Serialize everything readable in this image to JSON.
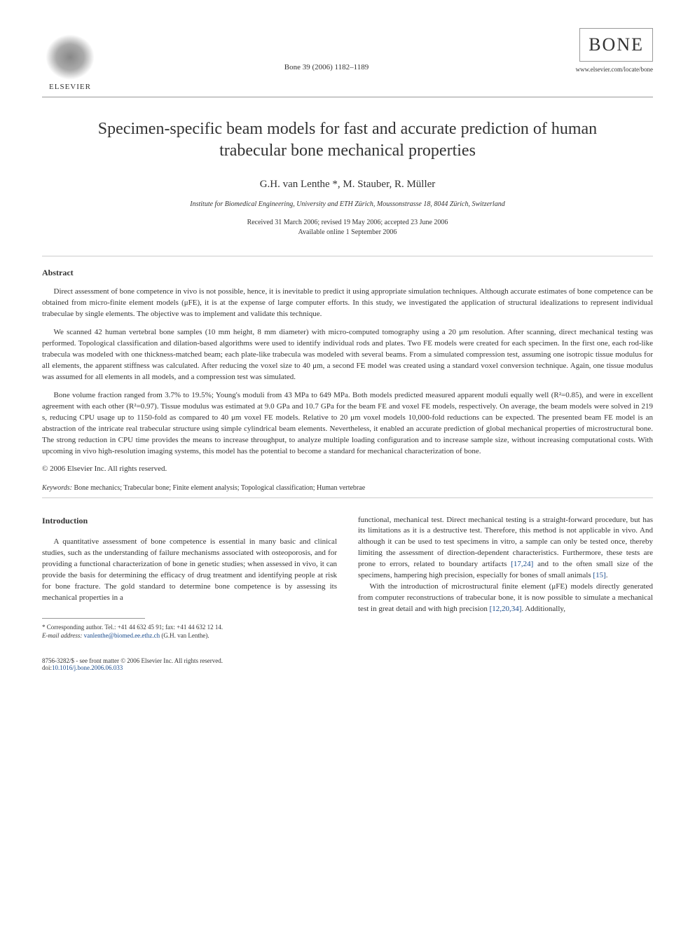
{
  "header": {
    "publisher_name": "ELSEVIER",
    "citation": "Bone 39 (2006) 1182–1189",
    "journal_logo": "BONE",
    "journal_url": "www.elsevier.com/locate/bone"
  },
  "article": {
    "title": "Specimen-specific beam models for fast and accurate prediction of human trabecular bone mechanical properties",
    "authors": "G.H. van Lenthe *, M. Stauber, R. Müller",
    "affiliation": "Institute for Biomedical Engineering, University and ETH Zürich, Moussonstrasse 18, 8044 Zürich, Switzerland",
    "received": "Received 31 March 2006; revised 19 May 2006; accepted 23 June 2006",
    "available": "Available online 1 September 2006"
  },
  "abstract": {
    "heading": "Abstract",
    "p1": "Direct assessment of bone competence in vivo is not possible, hence, it is inevitable to predict it using appropriate simulation techniques. Although accurate estimates of bone competence can be obtained from micro-finite element models (μFE), it is at the expense of large computer efforts. In this study, we investigated the application of structural idealizations to represent individual trabeculae by single elements. The objective was to implement and validate this technique.",
    "p2": "We scanned 42 human vertebral bone samples (10 mm height, 8 mm diameter) with micro-computed tomography using a 20 μm resolution. After scanning, direct mechanical testing was performed. Topological classification and dilation-based algorithms were used to identify individual rods and plates. Two FE models were created for each specimen. In the first one, each rod-like trabecula was modeled with one thickness-matched beam; each plate-like trabecula was modeled with several beams. From a simulated compression test, assuming one isotropic tissue modulus for all elements, the apparent stiffness was calculated. After reducing the voxel size to 40 μm, a second FE model was created using a standard voxel conversion technique. Again, one tissue modulus was assumed for all elements in all models, and a compression test was simulated.",
    "p3": "Bone volume fraction ranged from 3.7% to 19.5%; Young's moduli from 43 MPa to 649 MPa. Both models predicted measured apparent moduli equally well (R²=0.85), and were in excellent agreement with each other (R²=0.97). Tissue modulus was estimated at 9.0 GPa and 10.7 GPa for the beam FE and voxel FE models, respectively. On average, the beam models were solved in 219 s, reducing CPU usage up to 1150-fold as compared to 40 μm voxel FE models. Relative to 20 μm voxel models 10,000-fold reductions can be expected. The presented beam FE model is an abstraction of the intricate real trabecular structure using simple cylindrical beam elements. Nevertheless, it enabled an accurate prediction of global mechanical properties of microstructural bone. The strong reduction in CPU time provides the means to increase throughput, to analyze multiple loading configuration and to increase sample size, without increasing computational costs. With upcoming in vivo high-resolution imaging systems, this model has the potential to become a standard for mechanical characterization of bone.",
    "copyright": "© 2006 Elsevier Inc. All rights reserved.",
    "keywords_label": "Keywords:",
    "keywords": "Bone mechanics; Trabecular bone; Finite element analysis; Topological classification; Human vertebrae"
  },
  "intro": {
    "heading": "Introduction",
    "col1_p1": "A quantitative assessment of bone competence is essential in many basic and clinical studies, such as the understanding of failure mechanisms associated with osteoporosis, and for providing a functional characterization of bone in genetic studies; when assessed in vivo, it can provide the basis for determining the efficacy of drug treatment and identifying people at risk for bone fracture. The gold standard to determine bone competence is by assessing its mechanical properties in a",
    "col2_p1_a": "functional, mechanical test. Direct mechanical testing is a straight-forward procedure, but has its limitations as it is a destructive test. Therefore, this method is not applicable in vivo. And although it can be used to test specimens in vitro, a sample can only be tested once, thereby limiting the assessment of direction-dependent characteristics. Furthermore, these tests are prone to errors, related to boundary artifacts ",
    "ref1": "[17,24]",
    "col2_p1_b": " and to the often small size of the specimens, hampering high precision, especially for bones of small animals ",
    "ref2": "[15]",
    "col2_p1_c": ".",
    "col2_p2_a": "With the introduction of microstructural finite element (μFE) models directly generated from computer reconstructions of trabecular bone, it is now possible to simulate a mechanical test in great detail and with high precision ",
    "ref3": "[12,20,34]",
    "col2_p2_b": ". Additionally,"
  },
  "footnote": {
    "corr": "* Corresponding author. Tel.: +41 44 632 45 91; fax: +41 44 632 12 14.",
    "email_label": "E-mail address:",
    "email": "vanlenthe@biomed.ee.ethz.ch",
    "email_tail": " (G.H. van Lenthe)."
  },
  "footer": {
    "left": "8756-3282/$ - see front matter © 2006 Elsevier Inc. All rights reserved.",
    "doi_label": "doi:",
    "doi": "10.1016/j.bone.2006.06.033"
  },
  "colors": {
    "link": "#1a4b8c",
    "text": "#333333",
    "rule": "#999999"
  }
}
